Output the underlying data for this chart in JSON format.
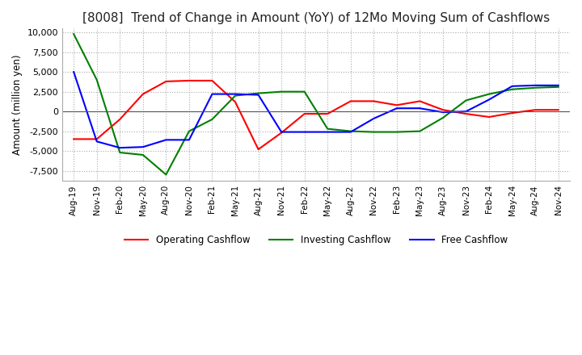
{
  "title": "[8008]  Trend of Change in Amount (YoY) of 12Mo Moving Sum of Cashflows",
  "ylabel": "Amount (million yen)",
  "ylim": [
    -8800,
    10500
  ],
  "yticks": [
    -7500,
    -5000,
    -2500,
    0,
    2500,
    5000,
    7500,
    10000
  ],
  "x_labels": [
    "Aug-19",
    "Nov-19",
    "Feb-20",
    "May-20",
    "Aug-20",
    "Nov-20",
    "Feb-21",
    "May-21",
    "Aug-21",
    "Nov-21",
    "Feb-22",
    "May-22",
    "Aug-22",
    "Nov-22",
    "Feb-23",
    "May-23",
    "Aug-23",
    "Nov-23",
    "Feb-24",
    "May-24",
    "Aug-24",
    "Nov-24"
  ],
  "operating": [
    -3500,
    -3500,
    -1000,
    2200,
    3800,
    3900,
    3900,
    1200,
    -4800,
    -2700,
    -300,
    -300,
    1300,
    1300,
    800,
    1300,
    200,
    -300,
    -700,
    -200,
    200,
    200
  ],
  "investing": [
    9800,
    4000,
    -5200,
    -5500,
    -8000,
    -2500,
    -1000,
    2000,
    2300,
    2500,
    2500,
    -2200,
    -2500,
    -2600,
    -2600,
    -2500,
    -800,
    1400,
    2200,
    2800,
    3000,
    3100
  ],
  "free": [
    5000,
    -3800,
    -4600,
    -4500,
    -3600,
    -3600,
    2200,
    2200,
    2100,
    -2600,
    -2600,
    -2600,
    -2600,
    -900,
    400,
    400,
    -100,
    0,
    1500,
    3200,
    3300,
    3300
  ],
  "colors": {
    "operating": "#ff0000",
    "investing": "#008000",
    "free": "#0000ff"
  },
  "background_color": "#ffffff",
  "grid_color": "#aaaaaa",
  "title_fontsize": 11,
  "legend_labels": [
    "Operating Cashflow",
    "Investing Cashflow",
    "Free Cashflow"
  ]
}
